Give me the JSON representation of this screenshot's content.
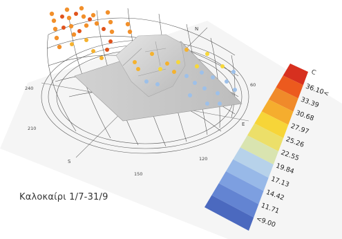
{
  "caption": "Καλοκαίρι 1/7-31/9",
  "compass": {
    "north": "N",
    "east": "E",
    "south": "S",
    "angles": [
      "240",
      "210",
      "150",
      "120",
      "60"
    ]
  },
  "legend": {
    "unit": "C",
    "colors": [
      "#d7301f",
      "#ec5a1e",
      "#f08a2a",
      "#f5ad2e",
      "#f7d538",
      "#ecdf69",
      "#d9e4b0",
      "#b7d2ea",
      "#98b9e8",
      "#7d9fe0",
      "#6384d2",
      "#4b69bf"
    ],
    "labels": [
      "36.10<",
      "33.39",
      "30.68",
      "27.97",
      "25.26",
      "22.55",
      "19.84",
      "17.13",
      "14.42",
      "11.71",
      "<9.00"
    ]
  }
}
